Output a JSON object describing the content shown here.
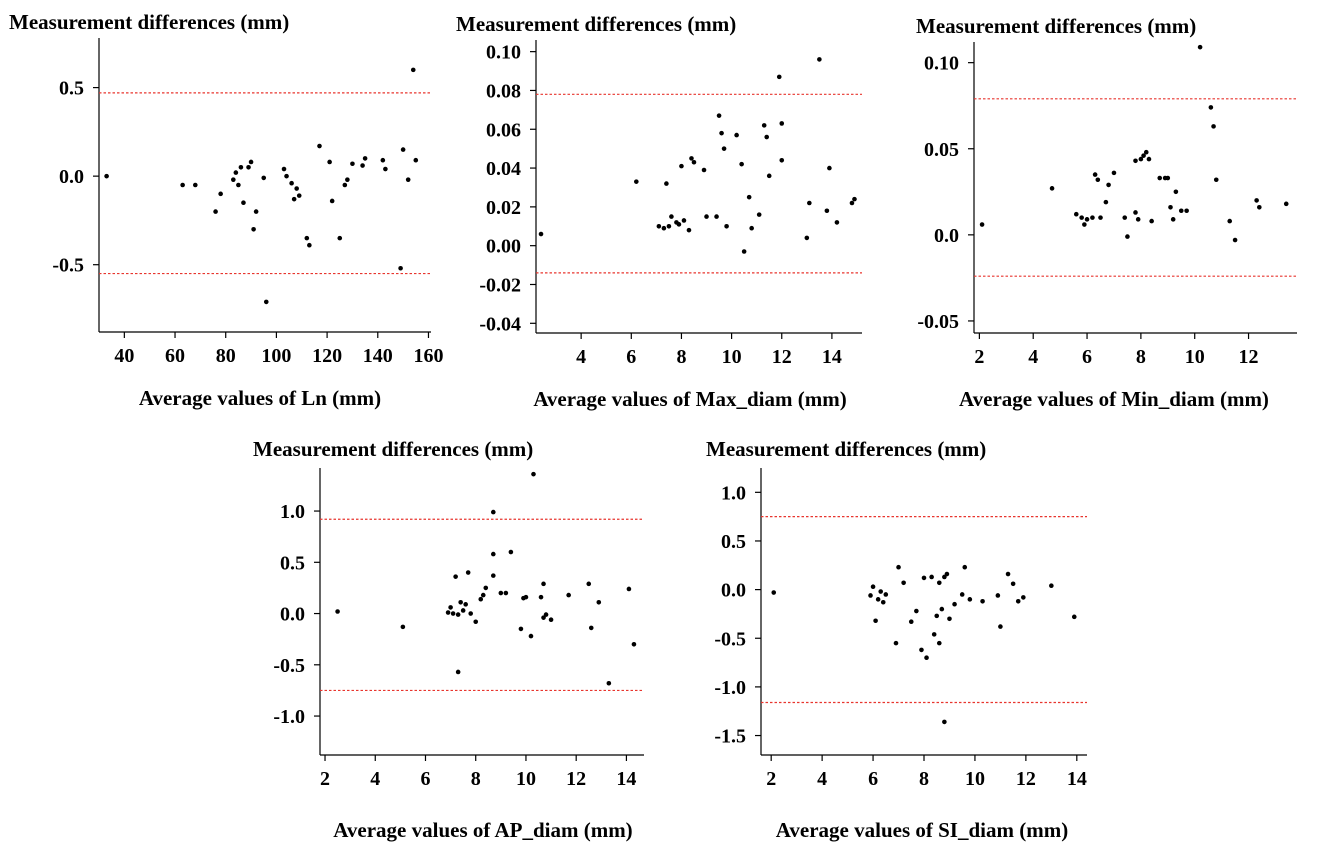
{
  "chart_data": [
    {
      "type": "scatter",
      "title": "Measurement differences (mm)",
      "xlabel": "Average values of Ln (mm)",
      "ylabel": "",
      "xlim": [
        30,
        161
      ],
      "ylim": [
        -0.88,
        0.78
      ],
      "xticks": [
        {
          "value": 40,
          "label": "40"
        },
        {
          "value": 60,
          "label": "60"
        },
        {
          "value": 80,
          "label": "80"
        },
        {
          "value": 100,
          "label": "100"
        },
        {
          "value": 120,
          "label": "120"
        },
        {
          "value": 140,
          "label": "140"
        },
        {
          "value": 160,
          "label": "160"
        }
      ],
      "yticks": [
        {
          "value": 0.5,
          "label": "0.5"
        },
        {
          "value": 0.0,
          "label": "0.0"
        },
        {
          "value": -0.5,
          "label": "-0.5"
        }
      ],
      "reference_lines": [
        0.47,
        -0.55
      ],
      "reference_line_color": "#e8352e",
      "points": [
        [
          33,
          0.0
        ],
        [
          63,
          -0.05
        ],
        [
          68,
          -0.05
        ],
        [
          76,
          -0.2
        ],
        [
          78,
          -0.1
        ],
        [
          83,
          -0.02
        ],
        [
          84,
          0.02
        ],
        [
          85,
          -0.05
        ],
        [
          86,
          0.05
        ],
        [
          87,
          -0.15
        ],
        [
          89,
          0.05
        ],
        [
          90,
          0.08
        ],
        [
          91,
          -0.3
        ],
        [
          92,
          -0.2
        ],
        [
          95,
          -0.01
        ],
        [
          96,
          -0.71
        ],
        [
          103,
          0.04
        ],
        [
          104,
          0.0
        ],
        [
          106,
          -0.04
        ],
        [
          107,
          -0.13
        ],
        [
          108,
          -0.07
        ],
        [
          109,
          -0.11
        ],
        [
          112,
          -0.35
        ],
        [
          113,
          -0.39
        ],
        [
          117,
          0.17
        ],
        [
          121,
          0.08
        ],
        [
          122,
          -0.14
        ],
        [
          125,
          -0.35
        ],
        [
          127,
          -0.05
        ],
        [
          128,
          -0.02
        ],
        [
          130,
          0.07
        ],
        [
          134,
          0.06
        ],
        [
          135,
          0.1
        ],
        [
          142,
          0.09
        ],
        [
          143,
          0.04
        ],
        [
          149,
          -0.52
        ],
        [
          150,
          0.15
        ],
        [
          152,
          -0.02
        ],
        [
          154,
          0.6
        ],
        [
          155,
          0.09
        ]
      ]
    },
    {
      "type": "scatter",
      "title": "Measurement differences (mm)",
      "xlabel": "Average values of Max_diam (mm)",
      "ylabel": "",
      "xlim": [
        2.2,
        15.2
      ],
      "ylim": [
        -0.045,
        0.106
      ],
      "xticks": [
        {
          "value": 4,
          "label": "4"
        },
        {
          "value": 6,
          "label": "6"
        },
        {
          "value": 8,
          "label": "8"
        },
        {
          "value": 10,
          "label": "10"
        },
        {
          "value": 12,
          "label": "12"
        },
        {
          "value": 14,
          "label": "14"
        }
      ],
      "yticks": [
        {
          "value": 0.1,
          "label": "0.10"
        },
        {
          "value": 0.08,
          "label": "0.08"
        },
        {
          "value": 0.06,
          "label": "0.06"
        },
        {
          "value": 0.04,
          "label": "0.04"
        },
        {
          "value": 0.02,
          "label": "0.02"
        },
        {
          "value": 0.0,
          "label": "0.00"
        },
        {
          "value": -0.02,
          "label": "-0.02"
        },
        {
          "value": -0.04,
          "label": "-0.04"
        }
      ],
      "reference_lines": [
        0.078,
        -0.014
      ],
      "reference_line_color": "#e8352e",
      "points": [
        [
          2.4,
          0.006
        ],
        [
          6.2,
          0.033
        ],
        [
          7.1,
          0.01
        ],
        [
          7.3,
          0.009
        ],
        [
          7.4,
          0.032
        ],
        [
          7.5,
          0.01
        ],
        [
          7.6,
          0.015
        ],
        [
          7.8,
          0.012
        ],
        [
          7.9,
          0.011
        ],
        [
          8.0,
          0.041
        ],
        [
          8.1,
          0.013
        ],
        [
          8.3,
          0.008
        ],
        [
          8.4,
          0.045
        ],
        [
          8.5,
          0.043
        ],
        [
          8.9,
          0.039
        ],
        [
          9.0,
          0.015
        ],
        [
          9.4,
          0.015
        ],
        [
          9.5,
          0.067
        ],
        [
          9.6,
          0.058
        ],
        [
          9.7,
          0.05
        ],
        [
          9.8,
          0.01
        ],
        [
          10.2,
          0.057
        ],
        [
          10.4,
          0.042
        ],
        [
          10.5,
          -0.003
        ],
        [
          10.7,
          0.025
        ],
        [
          10.8,
          0.009
        ],
        [
          11.1,
          0.016
        ],
        [
          11.3,
          0.062
        ],
        [
          11.4,
          0.056
        ],
        [
          11.5,
          0.036
        ],
        [
          11.9,
          0.087
        ],
        [
          12.0,
          0.044
        ],
        [
          12.0,
          0.063
        ],
        [
          13.0,
          0.004
        ],
        [
          13.1,
          0.022
        ],
        [
          13.5,
          0.096
        ],
        [
          13.8,
          0.018
        ],
        [
          13.9,
          0.04
        ],
        [
          14.2,
          0.012
        ],
        [
          14.8,
          0.022
        ],
        [
          14.9,
          0.024
        ]
      ]
    },
    {
      "type": "scatter",
      "title": "Measurement differences (mm)",
      "xlabel": "Average values of Min_diam (mm)",
      "ylabel": "",
      "xlim": [
        1.8,
        13.8
      ],
      "ylim": [
        -0.057,
        0.112
      ],
      "xticks": [
        {
          "value": 2,
          "label": "2"
        },
        {
          "value": 4,
          "label": "4"
        },
        {
          "value": 6,
          "label": "6"
        },
        {
          "value": 8,
          "label": "8"
        },
        {
          "value": 10,
          "label": "10"
        },
        {
          "value": 12,
          "label": "12"
        }
      ],
      "yticks": [
        {
          "value": 0.1,
          "label": "0.10"
        },
        {
          "value": 0.05,
          "label": "0.05"
        },
        {
          "value": 0.0,
          "label": "0.0"
        },
        {
          "value": -0.05,
          "label": "-0.05"
        }
      ],
      "reference_lines": [
        0.079,
        -0.024
      ],
      "reference_line_color": "#e8352e",
      "points": [
        [
          2.1,
          0.006
        ],
        [
          4.7,
          0.027
        ],
        [
          5.6,
          0.012
        ],
        [
          5.8,
          0.01
        ],
        [
          5.9,
          0.006
        ],
        [
          6.0,
          0.009
        ],
        [
          6.2,
          0.01
        ],
        [
          6.3,
          0.035
        ],
        [
          6.4,
          0.032
        ],
        [
          6.5,
          0.01
        ],
        [
          6.7,
          0.019
        ],
        [
          6.8,
          0.029
        ],
        [
          7.0,
          0.036
        ],
        [
          7.4,
          0.01
        ],
        [
          7.5,
          -0.001
        ],
        [
          7.8,
          0.013
        ],
        [
          7.8,
          0.043
        ],
        [
          7.9,
          0.009
        ],
        [
          8.0,
          0.044
        ],
        [
          8.1,
          0.046
        ],
        [
          8.2,
          0.048
        ],
        [
          8.3,
          0.044
        ],
        [
          8.4,
          0.008
        ],
        [
          8.7,
          0.033
        ],
        [
          8.9,
          0.033
        ],
        [
          9.0,
          0.033
        ],
        [
          9.1,
          0.016
        ],
        [
          9.2,
          0.009
        ],
        [
          9.3,
          0.025
        ],
        [
          9.5,
          0.014
        ],
        [
          9.7,
          0.014
        ],
        [
          10.2,
          0.109
        ],
        [
          10.6,
          0.074
        ],
        [
          10.7,
          0.063
        ],
        [
          10.8,
          0.032
        ],
        [
          11.3,
          0.008
        ],
        [
          11.5,
          -0.003
        ],
        [
          12.3,
          0.02
        ],
        [
          12.4,
          0.016
        ],
        [
          13.4,
          0.018
        ]
      ]
    },
    {
      "type": "scatter",
      "title": "Measurement differences (mm)",
      "xlabel": "Average values of AP_diam (mm)",
      "ylabel": "",
      "xlim": [
        1.8,
        14.7
      ],
      "ylim": [
        -1.38,
        1.42
      ],
      "xticks": [
        {
          "value": 2,
          "label": "2"
        },
        {
          "value": 4,
          "label": "4"
        },
        {
          "value": 6,
          "label": "6"
        },
        {
          "value": 8,
          "label": "8"
        },
        {
          "value": 10,
          "label": "10"
        },
        {
          "value": 12,
          "label": "12"
        },
        {
          "value": 14,
          "label": "14"
        }
      ],
      "yticks": [
        {
          "value": 1.0,
          "label": "1.0"
        },
        {
          "value": 0.5,
          "label": "0.5"
        },
        {
          "value": 0.0,
          "label": "0.0"
        },
        {
          "value": -0.5,
          "label": "-0.5"
        },
        {
          "value": -1.0,
          "label": "-1.0"
        }
      ],
      "reference_lines": [
        0.92,
        -0.75
      ],
      "reference_line_color": "#e8352e",
      "points": [
        [
          2.5,
          0.02
        ],
        [
          5.1,
          -0.13
        ],
        [
          6.9,
          0.01
        ],
        [
          7.0,
          0.06
        ],
        [
          7.1,
          0.0
        ],
        [
          7.2,
          0.36
        ],
        [
          7.3,
          -0.01
        ],
        [
          7.3,
          -0.57
        ],
        [
          7.4,
          0.11
        ],
        [
          7.5,
          0.03
        ],
        [
          7.6,
          0.09
        ],
        [
          7.7,
          0.4
        ],
        [
          7.8,
          0.0
        ],
        [
          8.0,
          -0.08
        ],
        [
          8.2,
          0.14
        ],
        [
          8.3,
          0.18
        ],
        [
          8.4,
          0.25
        ],
        [
          8.7,
          0.37
        ],
        [
          8.7,
          0.99
        ],
        [
          8.7,
          0.58
        ],
        [
          9.0,
          0.2
        ],
        [
          9.2,
          0.2
        ],
        [
          9.4,
          0.6
        ],
        [
          9.8,
          -0.15
        ],
        [
          9.9,
          0.15
        ],
        [
          10.0,
          0.16
        ],
        [
          10.2,
          -0.22
        ],
        [
          10.3,
          1.36
        ],
        [
          10.6,
          0.16
        ],
        [
          10.7,
          -0.04
        ],
        [
          10.7,
          0.29
        ],
        [
          10.8,
          -0.01
        ],
        [
          11.0,
          -0.06
        ],
        [
          11.7,
          0.18
        ],
        [
          12.5,
          0.29
        ],
        [
          12.6,
          -0.14
        ],
        [
          12.9,
          0.11
        ],
        [
          13.3,
          -0.68
        ],
        [
          14.1,
          0.24
        ],
        [
          14.3,
          -0.3
        ]
      ]
    },
    {
      "type": "scatter",
      "title": "Measurement differences (mm)",
      "xlabel": "Average values of SI_diam (mm)",
      "ylabel": "",
      "xlim": [
        1.6,
        14.4
      ],
      "ylim": [
        -1.7,
        1.25
      ],
      "xticks": [
        {
          "value": 2,
          "label": "2"
        },
        {
          "value": 4,
          "label": "4"
        },
        {
          "value": 6,
          "label": "6"
        },
        {
          "value": 8,
          "label": "8"
        },
        {
          "value": 10,
          "label": "10"
        },
        {
          "value": 12,
          "label": "12"
        },
        {
          "value": 14,
          "label": "14"
        }
      ],
      "yticks": [
        {
          "value": 1.0,
          "label": "1.0"
        },
        {
          "value": 0.5,
          "label": "0.5"
        },
        {
          "value": 0.0,
          "label": "0.0"
        },
        {
          "value": -0.5,
          "label": "-0.5"
        },
        {
          "value": -1.0,
          "label": "-1.0"
        },
        {
          "value": -1.5,
          "label": "-1.5"
        }
      ],
      "reference_lines": [
        0.75,
        -1.16
      ],
      "reference_line_color": "#e8352e",
      "points": [
        [
          2.1,
          -0.03
        ],
        [
          5.9,
          -0.06
        ],
        [
          6.0,
          0.03
        ],
        [
          6.1,
          -0.32
        ],
        [
          6.2,
          -0.1
        ],
        [
          6.3,
          -0.02
        ],
        [
          6.4,
          -0.13
        ],
        [
          6.5,
          -0.05
        ],
        [
          6.9,
          -0.55
        ],
        [
          7.0,
          0.23
        ],
        [
          7.2,
          0.07
        ],
        [
          7.5,
          -0.33
        ],
        [
          7.7,
          -0.22
        ],
        [
          7.9,
          -0.62
        ],
        [
          8.0,
          0.12
        ],
        [
          8.1,
          -0.7
        ],
        [
          8.3,
          0.13
        ],
        [
          8.4,
          -0.46
        ],
        [
          8.5,
          -0.27
        ],
        [
          8.6,
          -0.55
        ],
        [
          8.6,
          0.07
        ],
        [
          8.7,
          -0.2
        ],
        [
          8.8,
          0.13
        ],
        [
          8.8,
          -1.36
        ],
        [
          8.9,
          0.16
        ],
        [
          9.0,
          -0.3
        ],
        [
          9.2,
          -0.15
        ],
        [
          9.5,
          -0.05
        ],
        [
          9.6,
          0.23
        ],
        [
          9.8,
          -0.1
        ],
        [
          10.3,
          -0.12
        ],
        [
          10.9,
          -0.06
        ],
        [
          11.0,
          -0.38
        ],
        [
          11.3,
          0.16
        ],
        [
          11.5,
          0.06
        ],
        [
          11.7,
          -0.12
        ],
        [
          11.9,
          -0.08
        ],
        [
          13.0,
          0.04
        ],
        [
          13.9,
          -0.28
        ]
      ]
    }
  ]
}
